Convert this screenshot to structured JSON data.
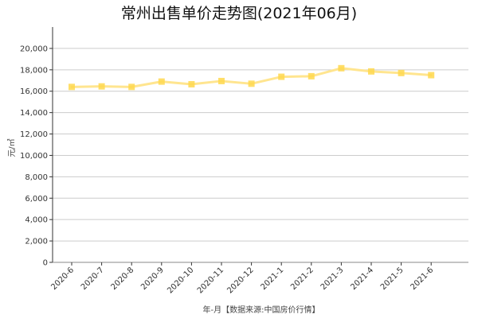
{
  "chart_data": {
    "type": "line",
    "title": "常州出售单价走势图(2021年06月)",
    "xlabel": "年-月【数据来源:中国房价行情】",
    "ylabel": "元/㎡",
    "categories": [
      "2020-6",
      "2020-7",
      "2020-8",
      "2020-9",
      "2020-10",
      "2020-11",
      "2020-12",
      "2021-1",
      "2021-2",
      "2021-3",
      "2021-4",
      "2021-5",
      "2021-6"
    ],
    "series": [
      {
        "values": [
          16400,
          16450,
          16400,
          16900,
          16650,
          16950,
          16700,
          17350,
          17400,
          18150,
          17850,
          17700,
          17500
        ]
      }
    ],
    "ylim": [
      0,
      22000
    ],
    "yticks": [
      0,
      2000,
      4000,
      6000,
      8000,
      10000,
      12000,
      14000,
      16000,
      18000,
      20000
    ],
    "ytick_labels": [
      "0",
      "2,000",
      "4,000",
      "6,000",
      "8,000",
      "10,000",
      "12,000",
      "14,000",
      "16,000",
      "18,000",
      "20,000"
    ],
    "grid": true,
    "colors": {
      "line": "#ffe58f",
      "marker": "#ffd84d",
      "grid": "#cccccc",
      "axis": "#333333"
    }
  }
}
